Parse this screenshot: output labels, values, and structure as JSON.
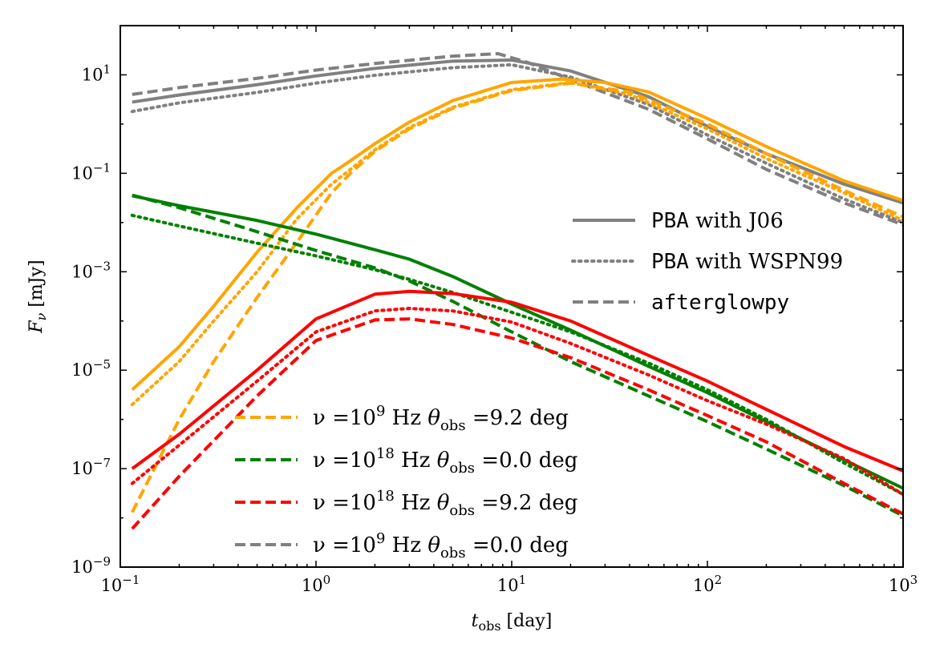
{
  "chart_data": {
    "type": "line",
    "title": "",
    "xlabel": {
      "base": "t",
      "sub": "obs",
      "unit": "[day]"
    },
    "ylabel": {
      "base": "F",
      "sub": "ν",
      "unit": "[mJy]"
    },
    "xscale": "log",
    "yscale": "log",
    "xlim": [
      0.1,
      1000
    ],
    "ylim": [
      1e-09,
      100
    ],
    "x_ticks": [
      {
        "value": 0.1,
        "base": "10",
        "exp": "−1"
      },
      {
        "value": 1,
        "base": "10",
        "exp": "0"
      },
      {
        "value": 10,
        "base": "10",
        "exp": "1"
      },
      {
        "value": 100,
        "base": "10",
        "exp": "2"
      },
      {
        "value": 1000,
        "base": "10",
        "exp": "3"
      }
    ],
    "y_ticks": [
      {
        "value": 1e-09,
        "base": "10",
        "exp": "−9"
      },
      {
        "value": 1e-07,
        "base": "10",
        "exp": "−7"
      },
      {
        "value": 1e-05,
        "base": "10",
        "exp": "−5"
      },
      {
        "value": 0.001,
        "base": "10",
        "exp": "−3"
      },
      {
        "value": 0.1,
        "base": "10",
        "exp": "−1"
      },
      {
        "value": 10,
        "base": "10",
        "exp": "1"
      }
    ],
    "grid": false,
    "style_legend": {
      "placement": "right",
      "entries": [
        {
          "style": "solid",
          "code": "PBA",
          "text": " with J06"
        },
        {
          "style": "dotted",
          "code": "PBA",
          "text": " with WSPN99"
        },
        {
          "style": "dashed",
          "code": "afterglowpy",
          "text": ""
        }
      ]
    },
    "color_legend": {
      "placement": "lower-center",
      "entries": [
        {
          "color": "#ffa500",
          "nu": "ν =10",
          "nu_exp": "9",
          "hz": " Hz ",
          "theta": "θ",
          "theta_sub": "obs",
          "value": " =9.2 deg"
        },
        {
          "color": "#008000",
          "nu": "ν =10",
          "nu_exp": "18",
          "hz": " Hz ",
          "theta": "θ",
          "theta_sub": "obs",
          "value": " =0.0 deg"
        },
        {
          "color": "#ff0000",
          "nu": "ν =10",
          "nu_exp": "18",
          "hz": " Hz ",
          "theta": "θ",
          "theta_sub": "obs",
          "value": " =9.2 deg"
        },
        {
          "color": "#808080",
          "nu": "ν =10",
          "nu_exp": "9",
          "hz": " Hz ",
          "theta": "θ",
          "theta_sub": "obs",
          "value": " =0.0 deg"
        }
      ]
    },
    "series": [
      {
        "color": "#808080",
        "style": "solid",
        "x": [
          0.115,
          0.2,
          0.5,
          1,
          2,
          5,
          10,
          20,
          50,
          100,
          200,
          500,
          1000
        ],
        "y": [
          2.8,
          3.9,
          6.3,
          9.5,
          13.5,
          19,
          20,
          12,
          3.6,
          0.9,
          0.25,
          0.06,
          0.025
        ]
      },
      {
        "color": "#808080",
        "style": "dotted",
        "x": [
          0.115,
          0.2,
          0.5,
          1,
          2,
          5,
          10,
          20,
          50,
          100,
          200,
          500,
          1000
        ],
        "y": [
          1.8,
          2.7,
          4.4,
          6.8,
          9.8,
          14,
          16,
          9,
          2.5,
          0.6,
          0.16,
          0.03,
          0.01
        ]
      },
      {
        "color": "#808080",
        "style": "dashed",
        "x": [
          0.115,
          0.2,
          0.5,
          1,
          2,
          5,
          8.5,
          12,
          20,
          50,
          100,
          200,
          500,
          1000
        ],
        "y": [
          4.0,
          5.5,
          8.5,
          12.5,
          17,
          24,
          27,
          18,
          8,
          2,
          0.5,
          0.12,
          0.025,
          0.009
        ]
      },
      {
        "color": "#ffa500",
        "style": "solid",
        "x": [
          0.115,
          0.2,
          0.3,
          0.5,
          0.8,
          1.2,
          1.5,
          2,
          3,
          5,
          10,
          18,
          30,
          50,
          100,
          200,
          500,
          1000
        ],
        "y": [
          4e-06,
          3e-05,
          0.0002,
          0.0025,
          0.02,
          0.1,
          0.18,
          0.4,
          1.1,
          3.0,
          7.0,
          8.2,
          7.0,
          4.5,
          1.3,
          0.35,
          0.07,
          0.028
        ]
      },
      {
        "color": "#ffa500",
        "style": "dotted",
        "x": [
          0.115,
          0.2,
          0.3,
          0.5,
          0.8,
          1.2,
          1.5,
          2,
          3,
          5,
          10,
          20,
          40,
          100,
          200,
          500,
          1000
        ],
        "y": [
          2e-06,
          1.5e-05,
          0.0001,
          0.001,
          0.012,
          0.06,
          0.12,
          0.3,
          0.85,
          2.2,
          5.0,
          7.0,
          4.0,
          0.8,
          0.2,
          0.04,
          0.011
        ]
      },
      {
        "color": "#ffa500",
        "style": "dashed",
        "x": [
          0.115,
          0.2,
          0.3,
          0.5,
          0.8,
          1.2,
          1.5,
          2,
          3,
          5,
          10,
          20,
          40,
          100,
          200,
          500,
          1000
        ],
        "y": [
          1.3e-08,
          1e-06,
          1.5e-05,
          0.0003,
          0.004,
          0.04,
          0.1,
          0.28,
          0.8,
          2.1,
          4.8,
          6.8,
          4.5,
          1.0,
          0.25,
          0.045,
          0.013
        ]
      },
      {
        "color": "#008000",
        "style": "solid",
        "x": [
          0.115,
          0.2,
          0.5,
          1,
          2,
          3,
          5,
          10,
          20,
          50,
          100,
          200,
          500,
          1000
        ],
        "y": [
          0.035,
          0.022,
          0.011,
          0.0058,
          0.0028,
          0.0018,
          0.0008,
          0.00022,
          6.5e-05,
          1.2e-05,
          3.5e-06,
          9e-07,
          1.5e-07,
          4e-08
        ]
      },
      {
        "color": "#008000",
        "style": "dotted",
        "x": [
          0.115,
          0.2,
          0.5,
          1,
          2,
          3,
          5,
          10,
          20,
          50,
          100,
          200,
          500,
          1000
        ],
        "y": [
          0.014,
          0.0085,
          0.0038,
          0.0021,
          0.0011,
          0.0007,
          0.00038,
          0.00015,
          6e-05,
          1.4e-05,
          4e-06,
          1e-06,
          1.3e-07,
          3e-08
        ]
      },
      {
        "color": "#008000",
        "style": "dashed",
        "x": [
          0.115,
          0.2,
          0.5,
          1,
          2,
          3,
          5,
          10,
          20,
          50,
          100,
          200,
          500,
          1000
        ],
        "y": [
          0.036,
          0.02,
          0.0065,
          0.0027,
          0.0012,
          0.00065,
          0.00025,
          6e-05,
          1.5e-05,
          3e-06,
          9e-07,
          2.5e-07,
          4.5e-08,
          1.1e-08
        ]
      },
      {
        "color": "#ff0000",
        "style": "solid",
        "x": [
          0.115,
          0.2,
          0.5,
          1,
          2,
          3,
          5,
          10,
          20,
          50,
          100,
          200,
          500,
          1000
        ],
        "y": [
          1e-07,
          5e-07,
          1e-05,
          0.00011,
          0.00035,
          0.0004,
          0.00036,
          0.00024,
          0.0001,
          2e-05,
          6e-06,
          1.6e-06,
          2.8e-07,
          9e-08
        ]
      },
      {
        "color": "#ff0000",
        "style": "dotted",
        "x": [
          0.115,
          0.2,
          0.5,
          1,
          2,
          3,
          5,
          10,
          20,
          50,
          100,
          200,
          500,
          1000
        ],
        "y": [
          5e-08,
          3e-07,
          6e-06,
          6e-05,
          0.00016,
          0.00018,
          0.00016,
          9.5e-05,
          3.5e-05,
          8e-06,
          2.4e-06,
          8e-07,
          1.6e-07,
          3e-08
        ]
      },
      {
        "color": "#ff0000",
        "style": "dashed",
        "x": [
          0.115,
          0.2,
          0.5,
          1,
          2,
          3,
          5,
          10,
          20,
          50,
          100,
          200,
          500,
          1000
        ],
        "y": [
          6e-09,
          7e-08,
          3e-06,
          4e-05,
          0.000105,
          0.00011,
          8.5e-05,
          4.5e-05,
          1.8e-05,
          4e-06,
          1.2e-06,
          3.5e-07,
          5e-08,
          1.2e-08
        ]
      }
    ]
  }
}
